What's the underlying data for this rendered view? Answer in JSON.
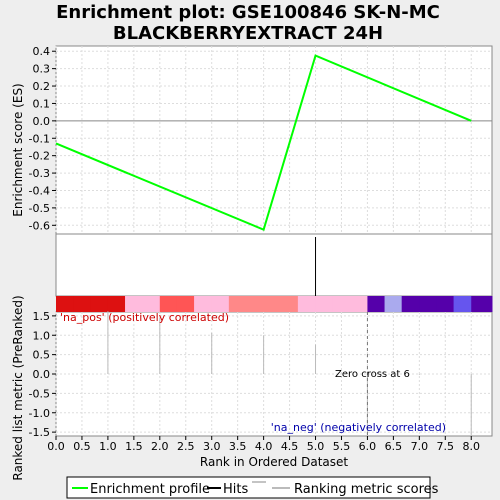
{
  "chart_data": {
    "type": "line",
    "title": "Enrichment plot: GSE100846 SK-N-MC BLACKBERRYEXTRACT 24H",
    "title_lines": [
      "Enrichment plot: GSE100846 SK-N-MC",
      "BLACKBERRYEXTRACT 24H"
    ],
    "x_ticks": [
      "0.0",
      "0.5",
      "1.0",
      "1.5",
      "2.0",
      "2.5",
      "3.0",
      "3.5",
      "4.0",
      "4.5",
      "5.0",
      "5.5",
      "6.0",
      "6.5",
      "7.0",
      "7.5",
      "8.0"
    ],
    "xlim": [
      0,
      8.4
    ],
    "xlabel": "Rank in Ordered Dataset",
    "es_panel": {
      "ylabel": "Enrichment score (ES)",
      "ylim": [
        -0.65,
        0.43
      ],
      "y_ticks": [
        "0.4",
        "0.3",
        "0.2",
        "0.1",
        "0.0",
        "-0.1",
        "-0.2",
        "-0.3",
        "-0.4",
        "-0.5",
        "-0.6"
      ],
      "series": [
        {
          "name": "Enrichment profile",
          "color": "#00ff00",
          "x": [
            0,
            4,
            5,
            8
          ],
          "y": [
            -0.13,
            -0.625,
            0.375,
            0.0
          ]
        }
      ]
    },
    "hits": [
      5
    ],
    "heatmap_colors": [
      "#dd1111",
      "#dd1111",
      "#dd1111",
      "#dd1111",
      "#ffbbdd",
      "#ffbbdd",
      "#ff5555",
      "#ff5555",
      "#ffbbdd",
      "#ffbbdd",
      "#ff8888",
      "#ff8888",
      "#ff8888",
      "#ff8888",
      "#ffbbdd",
      "#ffbbdd",
      "#ffbbdd",
      "#ffbbdd",
      "#5500aa",
      "#aaaaee",
      "#5500aa",
      "#5500aa",
      "#5500aa",
      "#6655ee",
      "#5500aa"
    ],
    "heatmap_bounds": [
      0,
      0.33,
      0.66,
      1.0,
      1.33,
      1.66,
      2.0,
      2.33,
      2.66,
      3.0,
      3.33,
      3.66,
      4.0,
      4.33,
      4.66,
      5.0,
      5.33,
      5.66,
      6.0,
      6.33,
      6.66,
      7.0,
      7.33,
      7.66,
      8.0,
      8.4
    ],
    "metric_panel": {
      "ylabel": "Ranked list metric (PreRanked)",
      "ylim": [
        -1.6,
        1.6
      ],
      "y_ticks": [
        "1.5",
        "1.0",
        "0.5",
        "0.0",
        "-0.5",
        "-1.0",
        "-1.5"
      ],
      "bars_x": [
        1,
        2,
        3,
        4,
        5,
        6,
        7,
        8
      ],
      "bars_y": [
        1.62,
        1.45,
        1.06,
        1.0,
        0.76,
        -1.55,
        -0.02,
        -1.6
      ],
      "zero_cross": 6,
      "zero_cross_label": "Zero cross at 6",
      "pos_label": "'na_pos' (positively correlated)",
      "neg_label": "'na_neg' (negatively correlated)",
      "pos_color": "#cc0000",
      "neg_color": "#0000aa"
    },
    "legend": [
      {
        "label": "Enrichment profile",
        "color": "#00ff00"
      },
      {
        "label": "Hits",
        "color": "#000000"
      },
      {
        "label": "Ranking metric scores",
        "color": "#bbbbbb"
      }
    ]
  }
}
